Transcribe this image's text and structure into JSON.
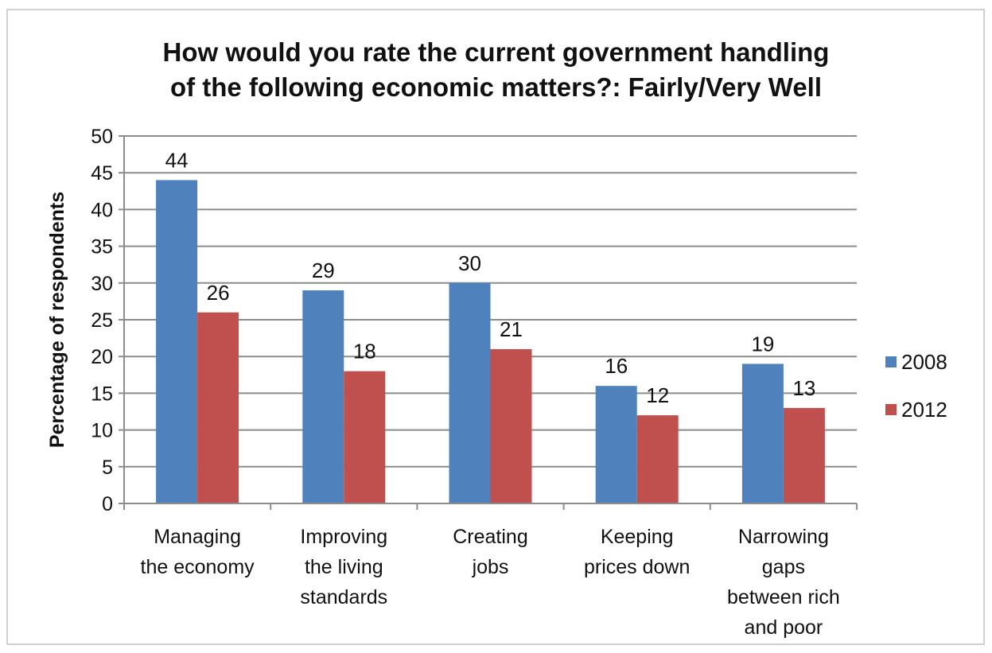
{
  "chart_data": {
    "type": "bar",
    "title_lines": [
      "How would you rate the current government handling",
      "of the following economic matters?: Fairly/Very Well"
    ],
    "ylabel": "Percentage of respondents",
    "xlabel": "",
    "ylim": [
      0,
      50
    ],
    "yticks": [
      0,
      5,
      10,
      15,
      20,
      25,
      30,
      35,
      40,
      45,
      50
    ],
    "grid": true,
    "legend_position": "right",
    "categories": [
      [
        "Managing",
        "the economy"
      ],
      [
        "Improving",
        "the living",
        "standards"
      ],
      [
        "Creating",
        "jobs"
      ],
      [
        "Keeping",
        "prices down"
      ],
      [
        "Narrowing",
        "gaps",
        "between rich",
        "and poor"
      ]
    ],
    "series": [
      {
        "name": "2008",
        "color": "#4f81bd",
        "values": [
          44,
          29,
          30,
          16,
          19
        ]
      },
      {
        "name": "2012",
        "color": "#c0504d",
        "values": [
          26,
          18,
          21,
          12,
          13
        ]
      }
    ]
  }
}
